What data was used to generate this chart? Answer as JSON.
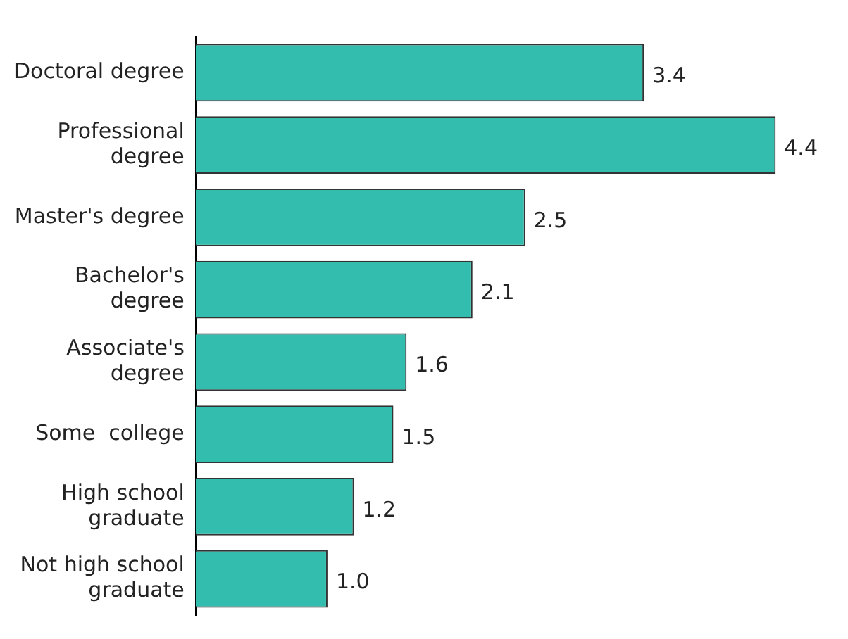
{
  "chart_data": {
    "type": "bar",
    "orientation": "horizontal",
    "categories": [
      "Doctoral degree",
      "Professional degree",
      "Master's degree",
      "Bachelor's degree",
      "Associate's degree",
      "Some  college",
      "High school graduate",
      "Not high school graduate"
    ],
    "values": [
      3.4,
      4.4,
      2.5,
      2.1,
      1.6,
      1.5,
      1.2,
      1.0
    ],
    "color": "#33bdae",
    "value_labels": [
      "3.4",
      "4.4",
      "2.5",
      "2.1",
      "1.6",
      "1.5",
      "1.2",
      "1.0"
    ]
  }
}
